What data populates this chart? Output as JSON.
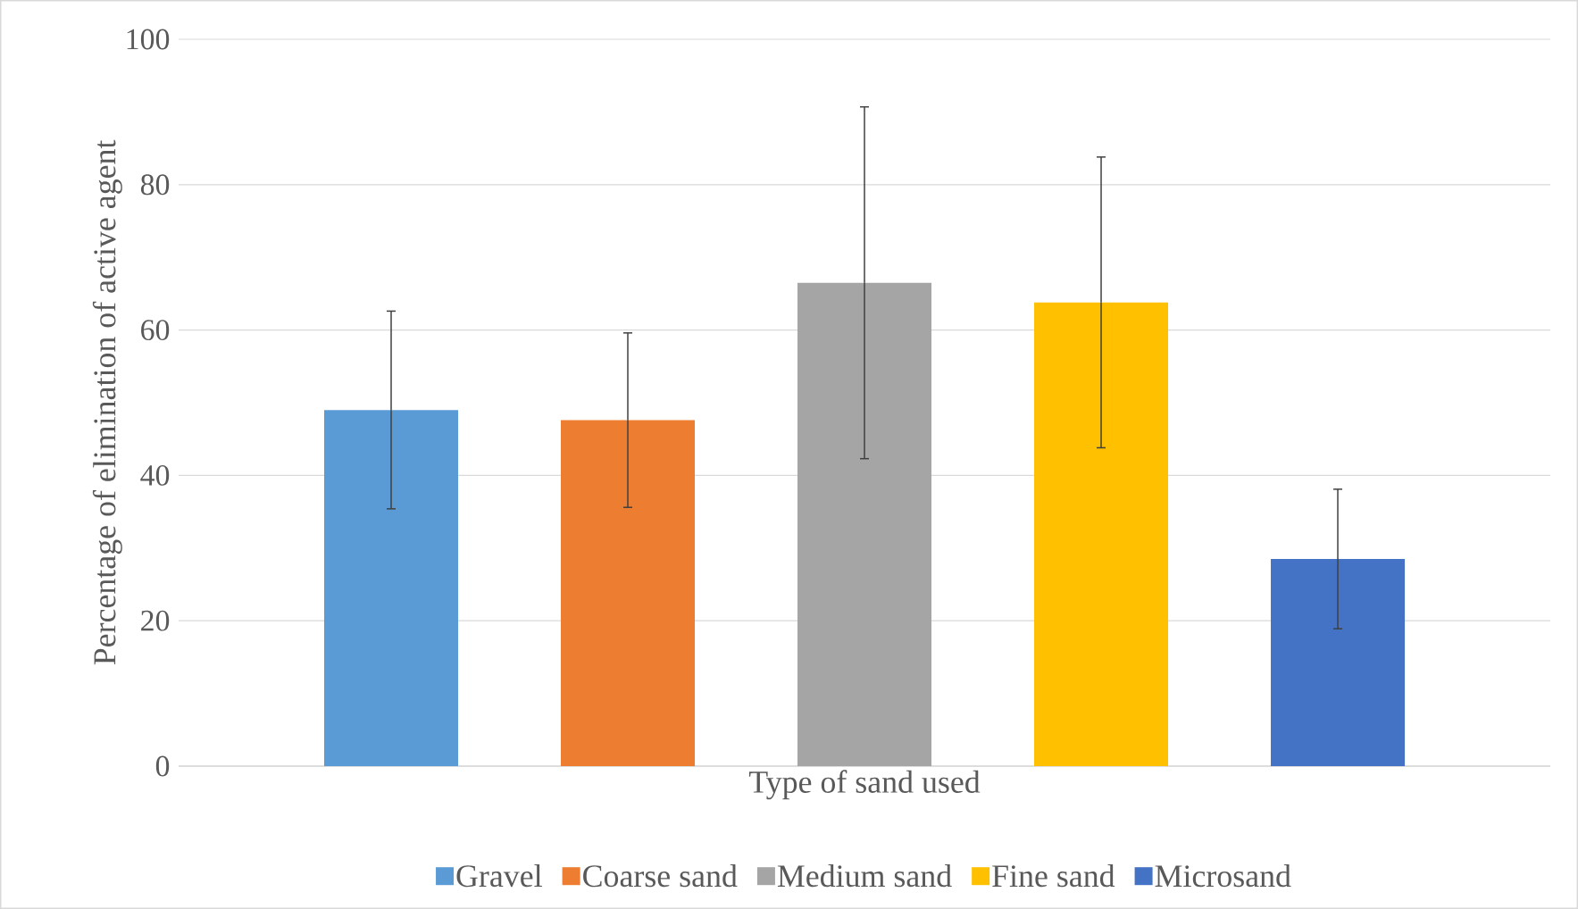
{
  "chart_data": {
    "type": "bar",
    "xlabel": "Type of sand used",
    "ylabel": "Percentage of elimination of active agent",
    "categories": [
      null
    ],
    "series": [
      {
        "name": "Gravel",
        "color": "#5b9bd5",
        "values": [
          49.0
        ],
        "errors": [
          13.6
        ]
      },
      {
        "name": "Coarse sand",
        "color": "#ed7d31",
        "values": [
          47.6
        ],
        "errors": [
          12.0
        ]
      },
      {
        "name": "Medium sand",
        "color": "#a5a5a5",
        "values": [
          66.5
        ],
        "errors": [
          24.2
        ]
      },
      {
        "name": "Fine sand",
        "color": "#ffc000",
        "values": [
          63.8
        ],
        "errors": [
          20.0
        ]
      },
      {
        "name": "Microsand",
        "color": "#4472c4",
        "values": [
          28.5
        ],
        "errors": [
          9.6
        ]
      }
    ],
    "ylim": [
      0,
      100
    ],
    "yticks": [
      0,
      20,
      40,
      60,
      80,
      100
    ],
    "grid": "y",
    "legend": "bottom"
  }
}
